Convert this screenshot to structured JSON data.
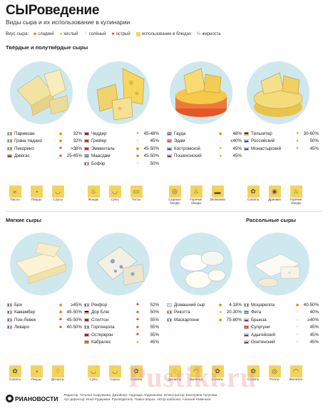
{
  "header": {
    "title": "СЫРоведение",
    "subtitle": "Виды сыра и их использование в кулинарии"
  },
  "legend": {
    "label": "Вкус сыра:",
    "items": [
      {
        "icon": "sweet-icon",
        "label": "сладкий"
      },
      {
        "icon": "sour-icon",
        "label": "кислый"
      },
      {
        "icon": "salty-icon",
        "label": "солёный"
      },
      {
        "icon": "hot-icon",
        "label": "острый"
      },
      {
        "icon": "dish-icon",
        "label": "использование в блюдах"
      },
      {
        "icon": "fat-icon",
        "label": "жирность"
      }
    ]
  },
  "sections": {
    "hard": "Твёрдые и полутвёрдые сыры",
    "soft": "Мягкие сыры",
    "brine": "Рассольные сыры"
  },
  "colors": {
    "circle": "#cfe8ee",
    "use_box": "#f3d35c",
    "sweet": "#e08a1c",
    "hot": "#d43a1a"
  },
  "groups": [
    {
      "cheeses": [
        {
          "name": "Пармезан",
          "taste": "sweet",
          "fat": "32%",
          "flag": "it"
        },
        {
          "name": "Грана падано",
          "taste": "sweet",
          "fat": "32%",
          "flag": "it"
        },
        {
          "name": "Пекорино",
          "taste": "hot",
          "fat": ">38%",
          "flag": "it"
        },
        {
          "name": "Джюгас",
          "taste": "hot",
          "fat": "25-45%",
          "flag": "lt"
        }
      ],
      "uses": [
        {
          "icon": "pasta-icon",
          "label": "Пасты"
        },
        {
          "icon": "pizza-icon",
          "label": "Пиццы"
        },
        {
          "icon": "sauce-icon",
          "label": "Соусы"
        }
      ]
    },
    {
      "cheeses": [
        {
          "name": "Чеддер",
          "taste": "sour",
          "fat": "45-48%",
          "flag": "gb"
        },
        {
          "name": "Грюйер",
          "taste": "salty",
          "fat": "45%",
          "flag": "ch"
        },
        {
          "name": "Эмменталь",
          "taste": "sweet",
          "fat": "45-50%",
          "flag": "ch"
        },
        {
          "name": "Маасдам",
          "taste": "sweet",
          "fat": "45-50%",
          "flag": "nl"
        },
        {
          "name": "Бофор",
          "taste": "salty",
          "fat": "50%",
          "flag": "fr"
        }
      ],
      "uses": [
        {
          "icon": "fondue-icon",
          "label": "Фондю"
        },
        {
          "icon": "soup-icon",
          "label": "Супы"
        },
        {
          "icon": "toast-icon",
          "label": "Тосты"
        }
      ]
    },
    {
      "cheeses": [
        {
          "name": "Гауда",
          "taste": "sweet",
          "fat": "48%",
          "flag": "nl"
        },
        {
          "name": "Эдам",
          "taste": "salty",
          "fat": "≤40%",
          "flag": "nl"
        },
        {
          "name": "Костромской",
          "taste": "sour",
          "fat": "45%",
          "flag": "ru"
        },
        {
          "name": "Пошехонский",
          "taste": "sour",
          "fat": "45%",
          "flag": "ru"
        }
      ],
      "uses": [
        {
          "icon": "cheese-platter-icon",
          "label": "Сырные блюда"
        },
        {
          "icon": "hot-dish-icon",
          "label": "Горячие блюда"
        },
        {
          "icon": "casserole-icon",
          "label": "Запеканки"
        }
      ]
    },
    {
      "cheeses": [
        {
          "name": "Тильзитер",
          "taste": "sour",
          "fat": "30-60%",
          "flag": "de"
        },
        {
          "name": "Российский",
          "taste": "sour",
          "fat": "50%",
          "flag": "ru"
        },
        {
          "name": "Монастырский",
          "taste": "sour",
          "fat": "45%",
          "flag": "ru"
        }
      ],
      "uses": [
        {
          "icon": "salad-icon",
          "label": "Салаты"
        },
        {
          "icon": "dranik-icon",
          "label": "Драники"
        },
        {
          "icon": "hot-dish-icon",
          "label": "Горячие блюда"
        }
      ]
    },
    {
      "cheeses": [
        {
          "name": "Бри",
          "taste": "sweet",
          "fat": "≥45%",
          "flag": "fr"
        },
        {
          "name": "Камамбер",
          "taste": "hot",
          "fat": "45-50%",
          "flag": "fr"
        },
        {
          "name": "Пон-Левек",
          "taste": "hot",
          "fat": "45-50%",
          "flag": "fr"
        },
        {
          "name": "Ливаро",
          "taste": "hot",
          "fat": "40-50%",
          "flag": "fr"
        }
      ],
      "uses": [
        {
          "icon": "salad-icon",
          "label": "Салаты"
        },
        {
          "icon": "pizza-icon",
          "label": "Пиццы"
        },
        {
          "icon": "dessert-icon",
          "label": "Десерты"
        }
      ]
    },
    {
      "cheeses": [
        {
          "name": "Рокфор",
          "taste": "hot",
          "fat": "52%",
          "flag": "fr"
        },
        {
          "name": "Дор Блю",
          "taste": "hot",
          "fat": "50%",
          "flag": "de"
        },
        {
          "name": "Стилтон",
          "taste": "hot",
          "fat": "55%",
          "flag": "gb"
        },
        {
          "name": "Горгонцола",
          "taste": "hot",
          "fat": "55%",
          "flag": "it"
        },
        {
          "name": "Остеркрон",
          "taste": "hot",
          "fat": "55%",
          "flag": "dk"
        },
        {
          "name": "Кабралес",
          "taste": "sour",
          "fat": "45%",
          "flag": "es"
        }
      ],
      "uses": [
        {
          "icon": "soup-icon",
          "label": "Супы"
        },
        {
          "icon": "sauce-icon",
          "label": "Соусы"
        },
        {
          "icon": "salad-icon",
          "label": "Салаты"
        }
      ]
    },
    {
      "cheeses": [
        {
          "name": "Домашний сыр",
          "taste": "sweet",
          "fat": "4-18%",
          "flag": "none"
        },
        {
          "name": "Рикотта",
          "taste": "sour",
          "fat": "20-30%",
          "flag": "it"
        },
        {
          "name": "Маскарпоне",
          "taste": "sweet",
          "fat": "75-80%",
          "flag": "it"
        }
      ],
      "uses": [
        {
          "icon": "dessert-icon",
          "label": "Десерты"
        },
        {
          "icon": "baking-icon",
          "label": "Выпечка"
        },
        {
          "icon": "salad-icon",
          "label": "Салаты"
        }
      ]
    },
    {
      "cheeses": [
        {
          "name": "Моцарелла",
          "taste": "sweet",
          "fat": "40-50%",
          "flag": "it"
        },
        {
          "name": "Фета",
          "taste": "salty",
          "fat": "40%",
          "flag": "gr"
        },
        {
          "name": "Брынза",
          "taste": "salty",
          "fat": "≥40%",
          "flag": "ru"
        },
        {
          "name": "Сулугуни",
          "taste": "salty",
          "fat": "45%",
          "flag": "ge"
        },
        {
          "name": "Адыгейский",
          "taste": "salty",
          "fat": "45%",
          "flag": "ru"
        },
        {
          "name": "Осетинский",
          "taste": "salty",
          "fat": "45%",
          "flag": "ru"
        }
      ],
      "uses": [
        {
          "icon": "salad-icon",
          "label": "Салаты"
        },
        {
          "icon": "roll-icon",
          "label": "Роллы"
        },
        {
          "icon": "baking-icon",
          "label": "Выпечка"
        }
      ]
    }
  ],
  "footer": {
    "logo": "РИАНОВОСТИ",
    "credits_1": "Редактор: Татьяна Азарункина. Дизайнер: Надежда Андрианова. Иллюстратор: Екатерина Чугунова.",
    "credits_2": "Арт-директор: Илья Рудерман. Руководитель: Павел Шорох. Автор шаблона: Алексей Новичков."
  },
  "watermark": "Pustiki.ru"
}
